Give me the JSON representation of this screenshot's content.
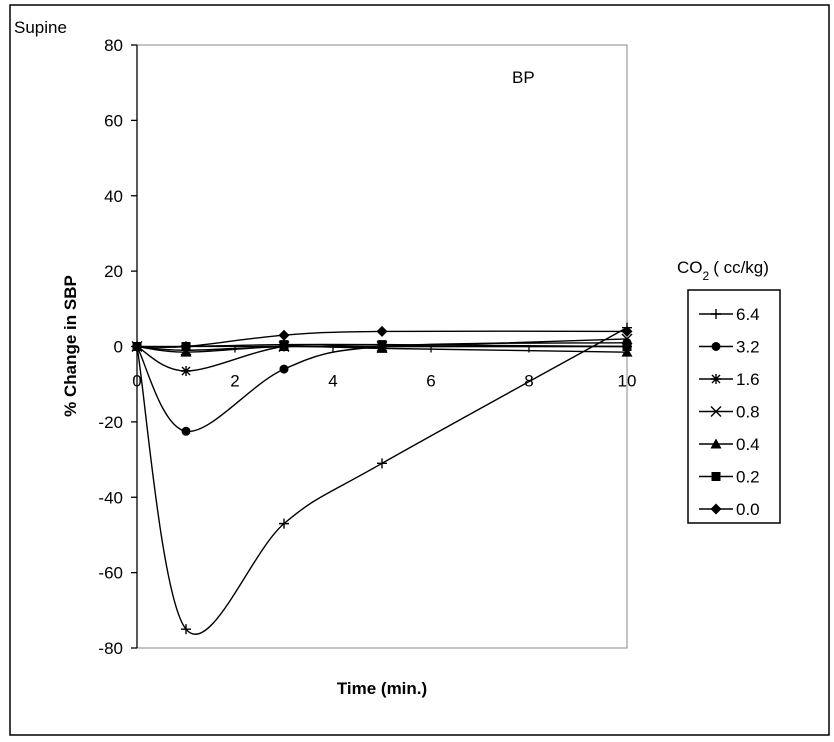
{
  "chart_data": {
    "type": "line",
    "title": "BP",
    "corner_label": "Supine",
    "xlabel": "Time (min.)",
    "ylabel": "% Change in SBP",
    "xlim": [
      0,
      10
    ],
    "ylim": [
      -80,
      80
    ],
    "x_ticks": [
      "0",
      "2",
      "4",
      "6",
      "8",
      "10"
    ],
    "y_ticks": [
      "80",
      "60",
      "40",
      "20",
      "0",
      "-20",
      "-40",
      "-60",
      "-80"
    ],
    "grid": false,
    "legend_title_prefix": "CO",
    "legend_title_sub": "2",
    "legend_title_suffix": "( cc/kg)",
    "legend_position": "right",
    "series": [
      {
        "name": "6.4",
        "marker": "plus",
        "x": [
          0,
          1,
          3,
          5,
          10
        ],
        "y": [
          0,
          -75,
          -47,
          -31,
          5
        ]
      },
      {
        "name": "3.2",
        "marker": "circle",
        "x": [
          0,
          1,
          3,
          5,
          10
        ],
        "y": [
          0,
          -22.5,
          -6,
          0,
          1
        ]
      },
      {
        "name": "1.6",
        "marker": "star",
        "x": [
          0,
          1,
          3,
          5,
          10
        ],
        "y": [
          0,
          -6.5,
          0,
          0,
          0
        ]
      },
      {
        "name": "0.8",
        "marker": "x",
        "x": [
          0,
          1,
          3,
          5,
          10
        ],
        "y": [
          0,
          -1,
          0,
          0,
          2
        ]
      },
      {
        "name": "0.4",
        "marker": "triangle",
        "x": [
          0,
          1,
          3,
          5,
          10
        ],
        "y": [
          0,
          -1.5,
          0,
          -0.5,
          -1.5
        ]
      },
      {
        "name": "0.2",
        "marker": "square",
        "x": [
          0,
          1,
          3,
          5,
          10
        ],
        "y": [
          0,
          0,
          0.5,
          0.5,
          0
        ]
      },
      {
        "name": "0.0",
        "marker": "diamond",
        "x": [
          0,
          1,
          3,
          5,
          10
        ],
        "y": [
          0,
          0,
          3,
          4,
          4
        ]
      }
    ]
  }
}
